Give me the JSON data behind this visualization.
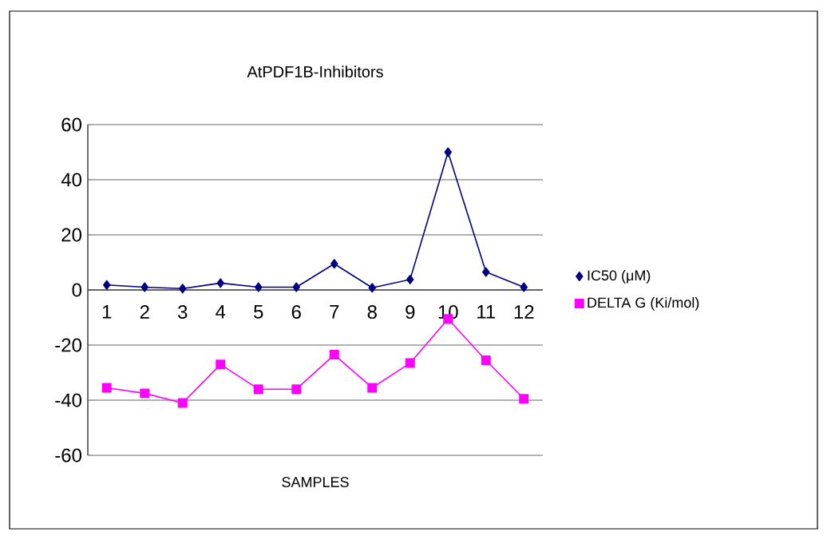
{
  "chart_data": {
    "type": "line",
    "title": "AtPDF1B-Inhibitors",
    "xlabel": "SAMPLES",
    "categories": [
      "1",
      "2",
      "3",
      "4",
      "5",
      "6",
      "7",
      "8",
      "9",
      "10",
      "11",
      "12"
    ],
    "series": [
      {
        "name": "IC50 (μM)",
        "color": "#000080",
        "marker": "diamond",
        "values": [
          1.8,
          1,
          0.5,
          2.5,
          1,
          1,
          9.5,
          0.8,
          3.8,
          50,
          6.5,
          1
        ]
      },
      {
        "name": "DELTA G (Ki/mol)",
        "color": "#ff00ff",
        "marker": "square",
        "values": [
          -35.5,
          -37.5,
          -41,
          -27,
          -36,
          -36,
          -23.5,
          -35.5,
          -26.5,
          -10.5,
          -25.5,
          -39.5
        ]
      }
    ],
    "ylim": [
      -60,
      60
    ],
    "yticks": [
      -60,
      -40,
      -20,
      0,
      20,
      40,
      60
    ],
    "grid": "y",
    "legend": "right"
  }
}
